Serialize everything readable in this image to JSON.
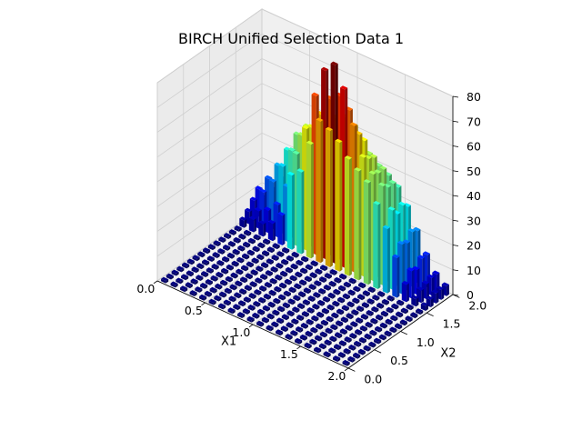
{
  "chart_data": {
    "type": "bar3d",
    "title": "BIRCH Unified Selection Data 1",
    "xlabel": "X1",
    "ylabel": "X2",
    "zlabel": "",
    "xlim": [
      0,
      2
    ],
    "ylim": [
      0,
      2
    ],
    "zlim": [
      0,
      80
    ],
    "x_ticks": [
      "0.0",
      "0.5",
      "1.0",
      "1.5",
      "2.0"
    ],
    "y_ticks": [
      "0.0",
      "0.5",
      "1.0",
      "1.5",
      "2.0"
    ],
    "z_ticks": [
      "0",
      "10",
      "20",
      "30",
      "40",
      "50",
      "60",
      "70",
      "80"
    ],
    "grid": true,
    "colormap": "jet",
    "x_centers": [
      0.05,
      0.15,
      0.25,
      0.35,
      0.45,
      0.55,
      0.65,
      0.75,
      0.85,
      0.95,
      1.05,
      1.15,
      1.25,
      1.35,
      1.45,
      1.55,
      1.65,
      1.75,
      1.85,
      1.95
    ],
    "y_centers": [
      0.05,
      0.15,
      0.25,
      0.35,
      0.45,
      0.55,
      0.65,
      0.75,
      0.85,
      0.95,
      1.05,
      1.15,
      1.25,
      1.35,
      1.45,
      1.55,
      1.65,
      1.75,
      1.85,
      1.95
    ],
    "values": [
      [
        0,
        0,
        0,
        0,
        0,
        0,
        0,
        0,
        0,
        0,
        0,
        0,
        0,
        0,
        0,
        0,
        0,
        0,
        0,
        0
      ],
      [
        0,
        0,
        0,
        0,
        0,
        0,
        0,
        0,
        0,
        0,
        0,
        0,
        0,
        0,
        0,
        0,
        0,
        0,
        0,
        0
      ],
      [
        0,
        0,
        0,
        0,
        0,
        0,
        0,
        0,
        0,
        0,
        0,
        0,
        0,
        0,
        0,
        0,
        0,
        0,
        0,
        0
      ],
      [
        0,
        0,
        0,
        0,
        0,
        0,
        0,
        0,
        0,
        0,
        0,
        0,
        0,
        0,
        0,
        0,
        0,
        0,
        0,
        0
      ],
      [
        0,
        0,
        0,
        0,
        0,
        0,
        0,
        0,
        0,
        0,
        0,
        0,
        0,
        0,
        0,
        0,
        0,
        0,
        0,
        0
      ],
      [
        0,
        0,
        0,
        0,
        0,
        0,
        0,
        0,
        0,
        0,
        0,
        0,
        0,
        0,
        0,
        0,
        0,
        0,
        0,
        0
      ],
      [
        0,
        0,
        0,
        0,
        0,
        0,
        0,
        0,
        0,
        0,
        0,
        0,
        0,
        0,
        0,
        0,
        0,
        0,
        0,
        0
      ],
      [
        0,
        0,
        0,
        0,
        0,
        0,
        0,
        0,
        0,
        0,
        0,
        0,
        0,
        0,
        0,
        0,
        0,
        0,
        0,
        0
      ],
      [
        0,
        0,
        0,
        0,
        0,
        0,
        0,
        0,
        0,
        0,
        0,
        0,
        0,
        0,
        0,
        0,
        0,
        0,
        0,
        0
      ],
      [
        0,
        0,
        0,
        0,
        0,
        0,
        0,
        0,
        0,
        0,
        0,
        0,
        0,
        0,
        0,
        0,
        0,
        0,
        0,
        0
      ],
      [
        0,
        0,
        0,
        0,
        0,
        0,
        0,
        0,
        0,
        0,
        0,
        0,
        0,
        0,
        0,
        0,
        0,
        0,
        0,
        0
      ],
      [
        0,
        0,
        0,
        0,
        0,
        0,
        0,
        0,
        0,
        0,
        0,
        0,
        0,
        0,
        0,
        0,
        0,
        0,
        0,
        0
      ],
      [
        0,
        0,
        0,
        0,
        0,
        0,
        0,
        0,
        0,
        0,
        0,
        0,
        0,
        0,
        0,
        0,
        0,
        0,
        0,
        0
      ],
      [
        0,
        0,
        0,
        0,
        0,
        0,
        0,
        0,
        0,
        0,
        0,
        0,
        0,
        0,
        0,
        0,
        0,
        0,
        0,
        0
      ],
      [
        0,
        0,
        0,
        0,
        0,
        0,
        0,
        0,
        0,
        0,
        0,
        0,
        0,
        0,
        0,
        0,
        0,
        0,
        0,
        0
      ],
      [
        3,
        5,
        5,
        7,
        12,
        30,
        33,
        46,
        57,
        55,
        52,
        47,
        44,
        41,
        34,
        26,
        16,
        7,
        3,
        2
      ],
      [
        5,
        7,
        9,
        13,
        22,
        37,
        49,
        64,
        76,
        80,
        72,
        59,
        48,
        43,
        40,
        32,
        20,
        11,
        5,
        3
      ],
      [
        8,
        13,
        19,
        27,
        35,
        43,
        48,
        55,
        63,
        66,
        62,
        54,
        46,
        42,
        38,
        29,
        19,
        10,
        6,
        4
      ],
      [
        11,
        17,
        24,
        32,
        40,
        45,
        47,
        50,
        54,
        56,
        54,
        50,
        45,
        42,
        38,
        31,
        22,
        13,
        7,
        4
      ],
      [
        6,
        11,
        17,
        25,
        32,
        38,
        42,
        44,
        45,
        46,
        45,
        43,
        40,
        38,
        35,
        29,
        21,
        13,
        7,
        4
      ]
    ]
  }
}
